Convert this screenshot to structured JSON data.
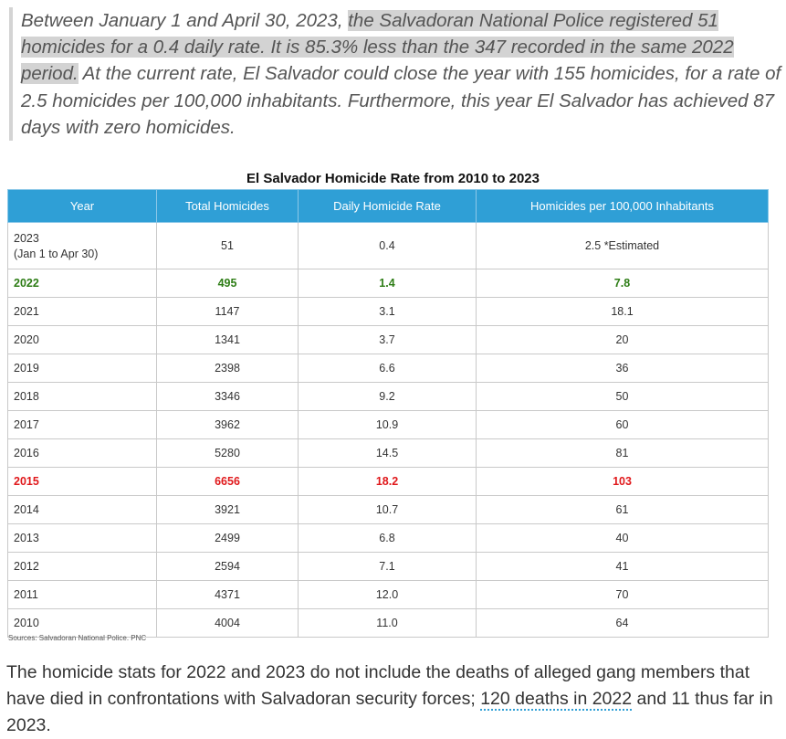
{
  "quote": {
    "part1": "Between January 1 and April 30, 2023, ",
    "highlight": "the Salvadoran National Police registered 51 homicides for a 0.4 daily rate. It is 85.3% less than the 347 recorded in the same 2022 period.",
    "part2": " At the current rate, El Salvador could close the year with 155 homicides, for a rate of 2.5 homicides per 100,000 inhabitants. Furthermore, this year El Salvador has achieved 87 days with zero homicides."
  },
  "table_title": "El Salvador Homicide Rate from 2010 to 2023",
  "columns": [
    "Year",
    "Total Homicides",
    "Daily Homicide Rate",
    "Homicides per 100,000 Inhabitants"
  ],
  "rows": [
    {
      "year": "2023",
      "year_sub": "(Jan 1 to Apr 30)",
      "total": "51",
      "daily": "0.4",
      "per100k": "2.5 *Estimated"
    },
    {
      "year": "2022",
      "total": "495",
      "daily": "1.4",
      "per100k": "7.8"
    },
    {
      "year": "2021",
      "total": "1147",
      "daily": "3.1",
      "per100k": "18.1"
    },
    {
      "year": "2020",
      "total": "1341",
      "daily": "3.7",
      "per100k": "20"
    },
    {
      "year": "2019",
      "total": "2398",
      "daily": "6.6",
      "per100k": "36"
    },
    {
      "year": "2018",
      "total": "3346",
      "daily": "9.2",
      "per100k": "50"
    },
    {
      "year": "2017",
      "total": "3962",
      "daily": "10.9",
      "per100k": "60"
    },
    {
      "year": "2016",
      "total": "5280",
      "daily": "14.5",
      "per100k": "81"
    },
    {
      "year": "2015",
      "total": "6656",
      "daily": "18.2",
      "per100k": "103"
    },
    {
      "year": "2014",
      "total": "3921",
      "daily": "10.7",
      "per100k": "61"
    },
    {
      "year": "2013",
      "total": "2499",
      "daily": "6.8",
      "per100k": "40"
    },
    {
      "year": "2012",
      "total": "2594",
      "daily": "7.1",
      "per100k": "41"
    },
    {
      "year": "2011",
      "total": "4371",
      "daily": "12.0",
      "per100k": "70"
    },
    {
      "year": "2010",
      "total": "4004",
      "daily": "11.0",
      "per100k": "64"
    }
  ],
  "colors": {
    "header_bg": "#2f9fd6",
    "highlight_green": "#2e7d16",
    "highlight_red": "#e0181b"
  },
  "source": "Sources: Salvadoran National Police. PNC",
  "paragraph": {
    "before": "The homicide stats for 2022 and 2023 do not include the deaths of alleged gang members that have died in confrontations with Salvadoran security forces; ",
    "link": "120 deaths in 2022",
    "after": " and 11 thus far in 2023."
  }
}
